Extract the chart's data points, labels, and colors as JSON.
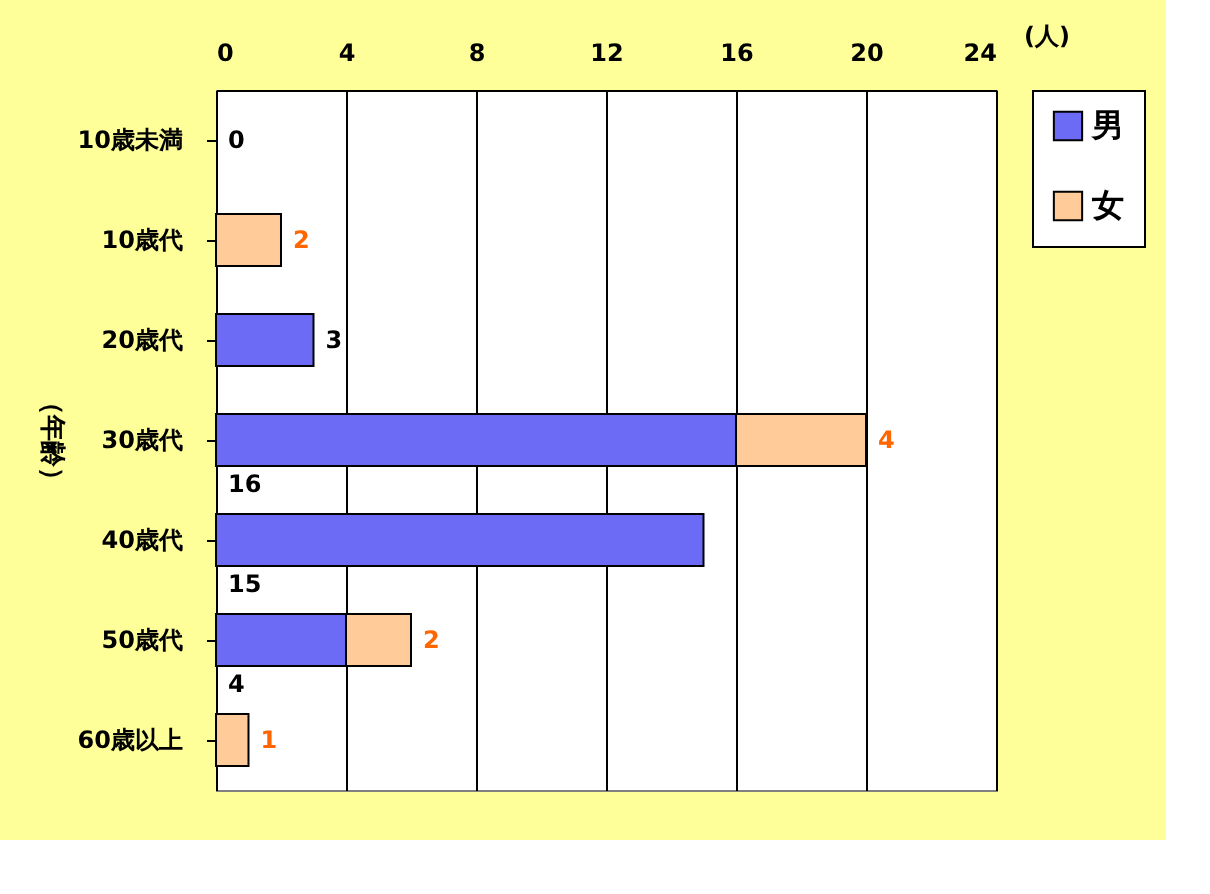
{
  "chart_data": {
    "type": "bar",
    "orientation": "horizontal",
    "stacked": true,
    "xlabel": "(人)",
    "ylabel": "（年齢）",
    "categories": [
      "10歳未満",
      "10歳代",
      "20歳代",
      "30歳代",
      "40歳代",
      "50歳代",
      "60歳以上"
    ],
    "series": [
      {
        "name": "男",
        "color": "#6b6bf5",
        "values": [
          0,
          0,
          3,
          16,
          15,
          4,
          0
        ],
        "value_labels": [
          "0",
          null,
          "3",
          "16",
          "15",
          "4",
          null
        ]
      },
      {
        "name": "女",
        "color": "#ffcc99",
        "values": [
          0,
          2,
          0,
          4,
          0,
          2,
          1
        ],
        "value_labels": [
          null,
          "2",
          null,
          "4",
          null,
          "2",
          "1"
        ]
      }
    ],
    "xlim": [
      0,
      24
    ],
    "xticks": [
      0,
      4,
      8,
      12,
      16,
      20,
      24
    ],
    "grid": "x",
    "legend": "right"
  }
}
